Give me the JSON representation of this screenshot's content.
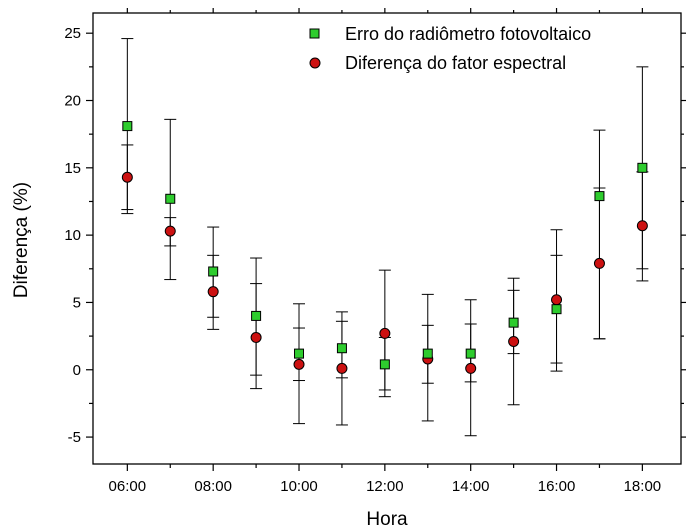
{
  "chart_data": {
    "type": "scatter",
    "title": "",
    "xlabel": "Hora",
    "ylabel": "Diferença (%)",
    "xlim": [
      5.2,
      18.9
    ],
    "ylim": [
      -7,
      26.5
    ],
    "x_ticks": [
      {
        "value": 6,
        "label": "06:00"
      },
      {
        "value": 8,
        "label": "08:00"
      },
      {
        "value": 10,
        "label": "10:00"
      },
      {
        "value": 12,
        "label": "12:00"
      },
      {
        "value": 14,
        "label": "14:00"
      },
      {
        "value": 16,
        "label": "16:00"
      },
      {
        "value": 18,
        "label": "18:00"
      }
    ],
    "y_ticks": [
      {
        "value": -5,
        "label": "-5"
      },
      {
        "value": 0,
        "label": "0"
      },
      {
        "value": 5,
        "label": "5"
      },
      {
        "value": 10,
        "label": "10"
      },
      {
        "value": 15,
        "label": "15"
      },
      {
        "value": 20,
        "label": "20"
      },
      {
        "value": 25,
        "label": "25"
      }
    ],
    "x": [
      6,
      7,
      8,
      9,
      10,
      11,
      12,
      13,
      14,
      15,
      16,
      17,
      18
    ],
    "grid": false,
    "legend_position": "top-right",
    "series": [
      {
        "name": "Erro do radiômetro fotovoltaico",
        "marker": "square",
        "color": "#2ecc2e",
        "values": [
          18.1,
          12.7,
          7.3,
          4.0,
          1.2,
          1.6,
          0.4,
          1.2,
          1.2,
          3.5,
          4.5,
          12.9,
          15.0
        ],
        "err_low": [
          11.6,
          6.7,
          3.0,
          -1.4,
          -4.0,
          -4.1,
          -1.5,
          -3.8,
          -4.9,
          -2.6,
          -0.1,
          2.3,
          7.5
        ],
        "err_high": [
          24.6,
          18.6,
          10.6,
          8.3,
          4.9,
          4.3,
          7.4,
          5.6,
          5.2,
          6.8,
          10.4,
          17.8,
          22.5
        ]
      },
      {
        "name": "Diferença do fator espectral",
        "marker": "circle",
        "color": "#cc1111",
        "values": [
          14.3,
          10.3,
          5.8,
          2.4,
          0.4,
          0.1,
          2.7,
          0.8,
          0.1,
          2.1,
          5.2,
          7.9,
          10.7
        ],
        "err_low": [
          11.9,
          9.2,
          3.9,
          -0.4,
          -0.8,
          -0.6,
          -2.0,
          -1.0,
          -0.9,
          1.2,
          0.5,
          2.3,
          6.6
        ],
        "err_high": [
          16.7,
          11.3,
          8.5,
          6.4,
          3.1,
          3.6,
          2.4,
          3.3,
          3.4,
          5.9,
          8.5,
          13.5,
          14.7
        ]
      }
    ]
  }
}
